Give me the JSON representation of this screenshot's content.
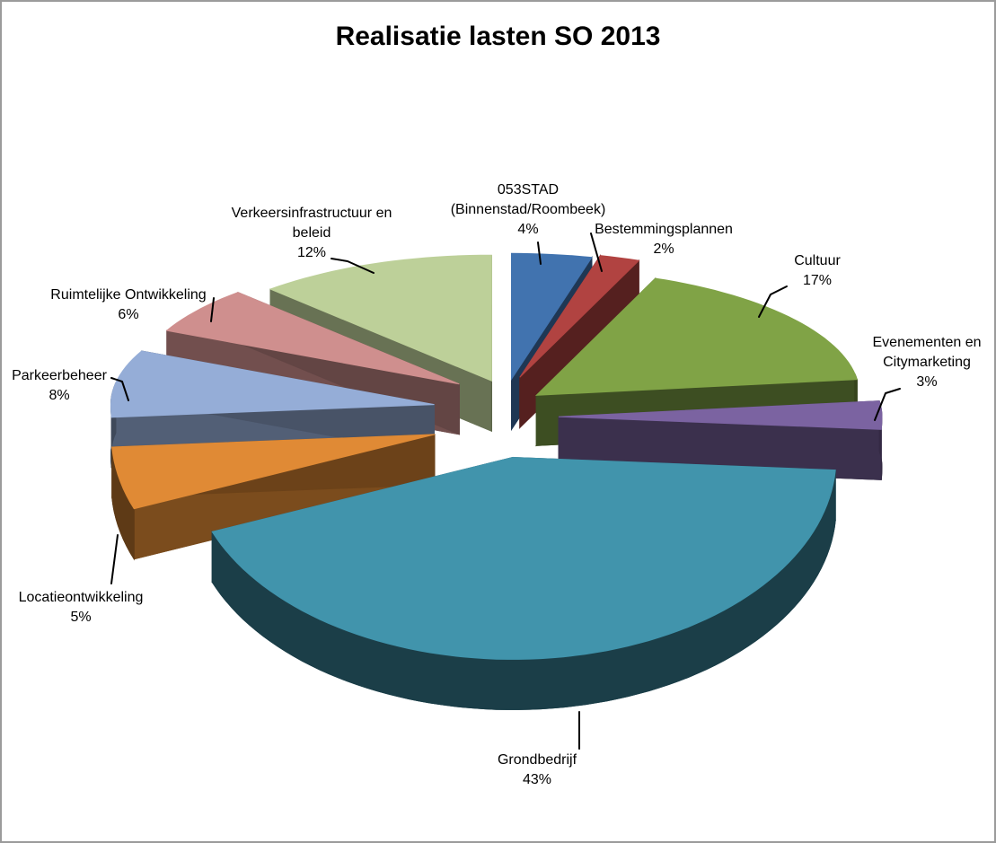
{
  "page": {
    "background_color": "#FFFFFF",
    "border_color": "#9B9B9B"
  },
  "chart_data": {
    "type": "pie",
    "style": "3d-exploded",
    "title": "Realisatie lasten SO 2013",
    "legend": "none",
    "labels_show": "category-and-percent",
    "start_angle_deg": 0,
    "direction": "clockwise",
    "slices": [
      {
        "key": "053stad",
        "label": "053STAD (Binnenstad/Roombeek)",
        "label_lines": [
          "053STAD",
          "(Binnenstad/Roombeek)"
        ],
        "value_pct": 4,
        "color": "#4173AF"
      },
      {
        "key": "bestemmingsplannen",
        "label": "Bestemmingsplannen",
        "label_lines": [
          "Bestemmingsplannen"
        ],
        "value_pct": 2,
        "color": "#B14341"
      },
      {
        "key": "cultuur",
        "label": "Cultuur",
        "label_lines": [
          "Cultuur"
        ],
        "value_pct": 17,
        "color": "#80A346"
      },
      {
        "key": "evenementen",
        "label": "Evenementen en Citymarketing",
        "label_lines": [
          "Evenementen en",
          "Citymarketing"
        ],
        "value_pct": 3,
        "color": "#7B63A1"
      },
      {
        "key": "grondbedrijf",
        "label": "Grondbedrijf",
        "label_lines": [
          "Grondbedrijf"
        ],
        "value_pct": 43,
        "color": "#4194AC"
      },
      {
        "key": "locatieontwikkeling",
        "label": "Locatieontwikkeling",
        "label_lines": [
          "Locatieontwikkeling"
        ],
        "value_pct": 5,
        "color": "#E08A35"
      },
      {
        "key": "parkeerbeheer",
        "label": "Parkeerbeheer",
        "label_lines": [
          "Parkeerbeheer"
        ],
        "value_pct": 8,
        "color": "#95ADD7"
      },
      {
        "key": "ruimtelijke",
        "label": "Ruimtelijke Ontwikkeling",
        "label_lines": [
          "Ruimtelijke Ontwikkeling"
        ],
        "value_pct": 6,
        "color": "#CF8F8E"
      },
      {
        "key": "verkeers",
        "label": "Verkeersinfrastructuur en beleid",
        "label_lines": [
          "Verkeersinfrastructuur en",
          "beleid"
        ],
        "value_pct": 12,
        "color": "#BDD099"
      }
    ]
  }
}
